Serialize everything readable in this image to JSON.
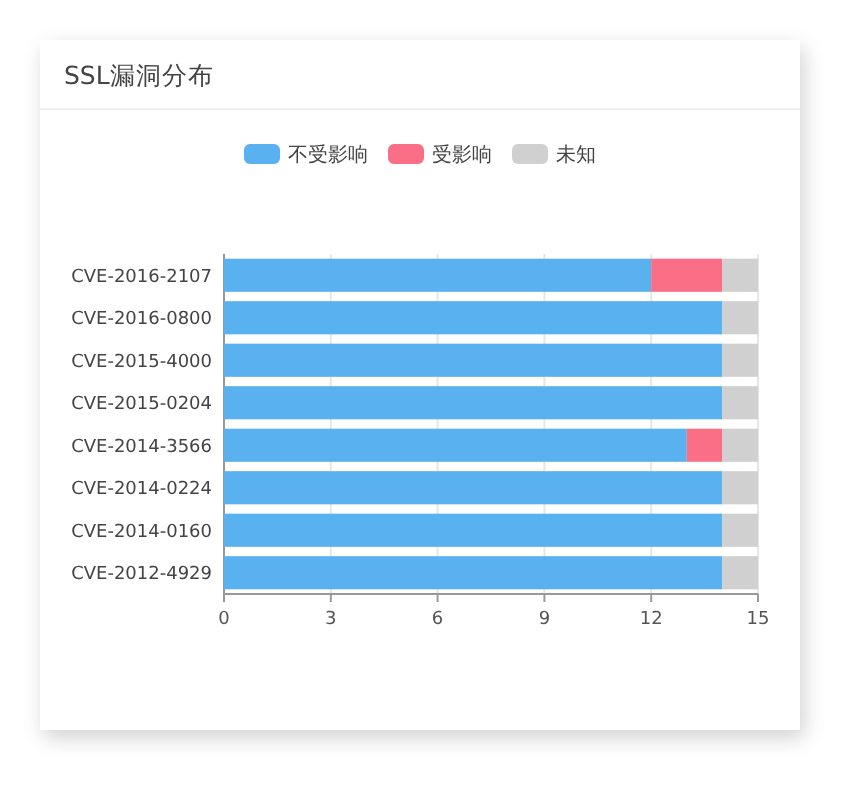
{
  "chart_data": {
    "type": "bar",
    "orientation": "horizontal",
    "stacked": true,
    "title": "SSL漏洞分布",
    "categories": [
      "CVE-2016-2107",
      "CVE-2016-0800",
      "CVE-2015-4000",
      "CVE-2015-0204",
      "CVE-2014-3566",
      "CVE-2014-0224",
      "CVE-2014-0160",
      "CVE-2012-4929"
    ],
    "series": [
      {
        "name": "不受影响",
        "color": "#5ab1ef",
        "values": [
          12,
          14,
          14,
          14,
          13,
          14,
          14,
          14
        ]
      },
      {
        "name": "受影响",
        "color": "#fa6e86",
        "values": [
          2,
          null,
          null,
          null,
          1,
          null,
          null,
          null
        ]
      },
      {
        "name": "未知",
        "color": "#d0d0d0",
        "values": [
          1,
          1,
          1,
          1,
          1,
          1,
          1,
          1
        ]
      }
    ],
    "xlim": [
      0,
      15
    ],
    "xticks": [
      0,
      3,
      6,
      9,
      12,
      15
    ],
    "grid": "x",
    "legend": "top"
  }
}
